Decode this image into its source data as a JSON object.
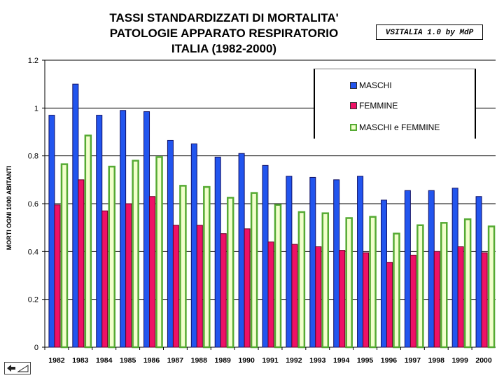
{
  "title_lines": [
    "TASSI STANDARDIZZATI DI MORTALITA'",
    "PATOLOGIE APPARATO RESPIRATORIO",
    "ITALIA (1982-2000)"
  ],
  "watermark": "VSITALIA 1.0 by MdP",
  "colors": {
    "maschi": "#2255ee",
    "femmine": "#ee1166",
    "totale": "#55aa33",
    "totale_fill": "#f2ffcc"
  },
  "chart_data": {
    "type": "bar",
    "title": "TASSI STANDARDIZZATI DI MORTALITA' PATOLOGIE APPARATO RESPIRATORIO ITALIA (1982-2000)",
    "xlabel": "",
    "ylabel": "MORTI OGNI 1000 ABITANTI",
    "ylim": [
      0,
      1.2
    ],
    "yticks": [
      "0",
      "0.2",
      "0.4",
      "0.6",
      "0.8",
      "1",
      "1.2"
    ],
    "grid": "horizontal",
    "legend_position": "top-right",
    "categories": [
      "1982",
      "1983",
      "1984",
      "1985",
      "1986",
      "1987",
      "1988",
      "1989",
      "1990",
      "1991",
      "1992",
      "1993",
      "1994",
      "1995",
      "1996",
      "1997",
      "1998",
      "1999",
      "2000"
    ],
    "series": [
      {
        "name": "MASCHI",
        "values": [
          0.97,
          1.1,
          0.97,
          0.99,
          0.985,
          0.865,
          0.85,
          0.795,
          0.81,
          0.76,
          0.715,
          0.71,
          0.7,
          0.715,
          0.615,
          0.655,
          0.655,
          0.665,
          0.63
        ]
      },
      {
        "name": "FEMMINE",
        "values": [
          0.595,
          0.7,
          0.57,
          0.6,
          0.63,
          0.51,
          0.51,
          0.475,
          0.495,
          0.44,
          0.43,
          0.42,
          0.405,
          0.395,
          0.355,
          0.385,
          0.4,
          0.42,
          0.395
        ]
      },
      {
        "name": "MASCHI e FEMMINE",
        "values": [
          0.765,
          0.885,
          0.755,
          0.78,
          0.795,
          0.675,
          0.67,
          0.625,
          0.645,
          0.595,
          0.565,
          0.56,
          0.54,
          0.545,
          0.475,
          0.51,
          0.52,
          0.535,
          0.505
        ]
      }
    ]
  }
}
